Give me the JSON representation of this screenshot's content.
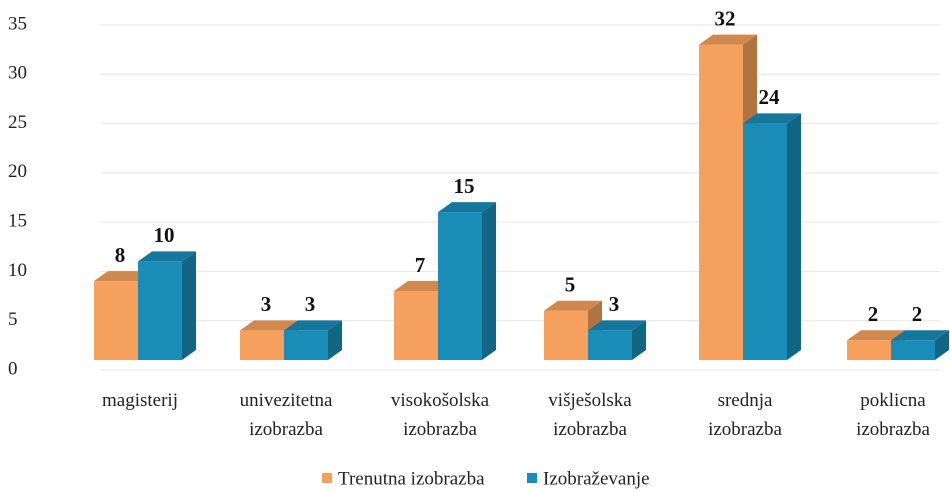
{
  "chart_data": {
    "type": "bar3d",
    "categories": [
      "magisterij",
      "univezitetna izobrazba",
      "visokošolska izobrazba",
      "višješolska izobrazba",
      "srednja izobrazba",
      "poklicna izobrazba"
    ],
    "series": [
      {
        "name": "Trenutna izobrazba",
        "color": "#f5a05c",
        "values": [
          8,
          3,
          7,
          5,
          32,
          2
        ]
      },
      {
        "name": "Izobraževanje",
        "color": "#1a8cb8",
        "values": [
          10,
          3,
          15,
          3,
          24,
          2
        ]
      }
    ],
    "ylim": [
      0,
      35
    ],
    "yticks": [
      0,
      5,
      10,
      15,
      20,
      25,
      30,
      35
    ],
    "grid": true,
    "legend": "bottom"
  }
}
